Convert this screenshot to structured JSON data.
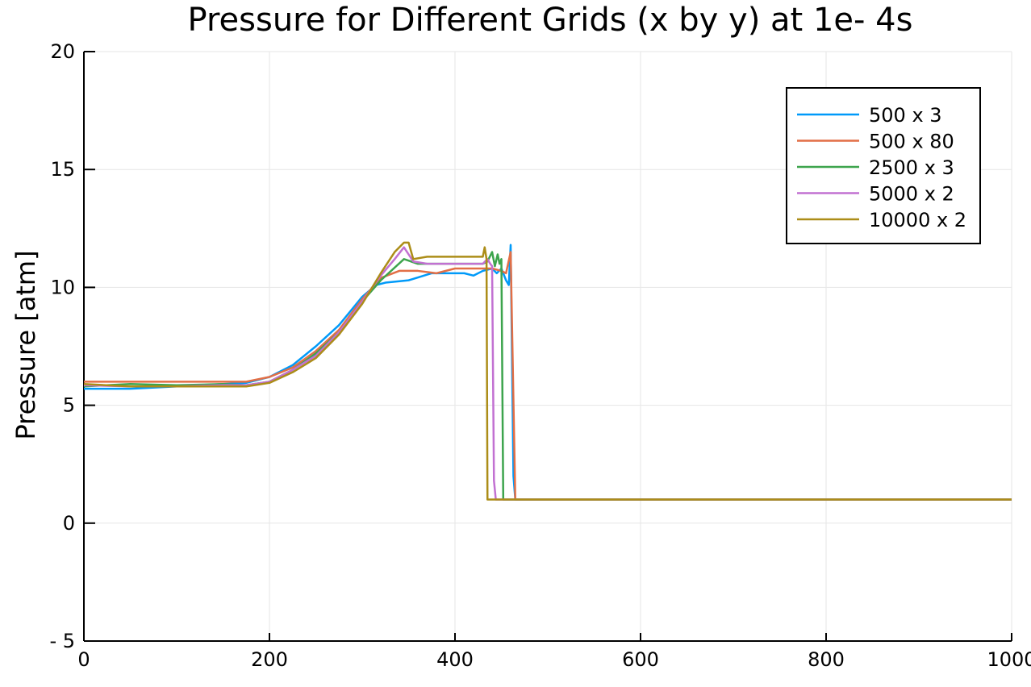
{
  "chart_data": {
    "type": "line",
    "title": "Pressure for Different Grids (x by y) at 1e- 4s",
    "xlabel": "",
    "ylabel": "Pressure [atm]",
    "xlim": [
      0,
      1000
    ],
    "ylim": [
      -5,
      20
    ],
    "x_ticks": [
      0,
      200,
      400,
      600,
      800,
      1000
    ],
    "x_tick_labels": [
      "0",
      "200",
      "400",
      "600",
      "800",
      "1000"
    ],
    "y_ticks": [
      -5,
      0,
      5,
      10,
      15,
      20
    ],
    "y_tick_labels": [
      "- 5",
      "0",
      "5",
      "10",
      "15",
      "20"
    ],
    "grid": true,
    "legend_position": "top-right",
    "series": [
      {
        "name": "500 x 3",
        "color": "#009af9",
        "points": [
          [
            0,
            5.7
          ],
          [
            50,
            5.7
          ],
          [
            100,
            5.8
          ],
          [
            150,
            5.9
          ],
          [
            175,
            5.95
          ],
          [
            200,
            6.2
          ],
          [
            225,
            6.7
          ],
          [
            250,
            7.5
          ],
          [
            275,
            8.4
          ],
          [
            300,
            9.6
          ],
          [
            315,
            10.1
          ],
          [
            325,
            10.2
          ],
          [
            350,
            10.3
          ],
          [
            375,
            10.6
          ],
          [
            400,
            10.6
          ],
          [
            410,
            10.6
          ],
          [
            420,
            10.5
          ],
          [
            430,
            10.7
          ],
          [
            440,
            10.8
          ],
          [
            445,
            10.6
          ],
          [
            450,
            10.8
          ],
          [
            455,
            10.3
          ],
          [
            458,
            10.1
          ],
          [
            460,
            11.8
          ],
          [
            463,
            2.0
          ],
          [
            465,
            1.0
          ],
          [
            1000,
            1.0
          ]
        ]
      },
      {
        "name": "500 x 80",
        "color": "#e26f46",
        "points": [
          [
            0,
            6.0
          ],
          [
            50,
            6.0
          ],
          [
            100,
            6.0
          ],
          [
            150,
            6.0
          ],
          [
            175,
            6.0
          ],
          [
            200,
            6.2
          ],
          [
            225,
            6.6
          ],
          [
            250,
            7.3
          ],
          [
            275,
            8.2
          ],
          [
            300,
            9.5
          ],
          [
            320,
            10.4
          ],
          [
            340,
            10.7
          ],
          [
            360,
            10.7
          ],
          [
            380,
            10.6
          ],
          [
            400,
            10.8
          ],
          [
            420,
            10.8
          ],
          [
            440,
            10.8
          ],
          [
            450,
            10.7
          ],
          [
            455,
            10.6
          ],
          [
            460,
            11.5
          ],
          [
            465,
            1.0
          ],
          [
            1000,
            1.0
          ]
        ]
      },
      {
        "name": "2500 x 3",
        "color": "#3da44d",
        "points": [
          [
            0,
            5.8
          ],
          [
            50,
            5.9
          ],
          [
            100,
            5.85
          ],
          [
            150,
            5.9
          ],
          [
            175,
            5.85
          ],
          [
            200,
            6.0
          ],
          [
            225,
            6.5
          ],
          [
            250,
            7.2
          ],
          [
            275,
            8.1
          ],
          [
            300,
            9.4
          ],
          [
            320,
            10.3
          ],
          [
            345,
            11.2
          ],
          [
            360,
            11.0
          ],
          [
            380,
            11.0
          ],
          [
            400,
            11.0
          ],
          [
            420,
            11.0
          ],
          [
            430,
            11.0
          ],
          [
            435,
            11.1
          ],
          [
            440,
            11.5
          ],
          [
            443,
            10.9
          ],
          [
            446,
            11.4
          ],
          [
            448,
            11.0
          ],
          [
            450,
            11.2
          ],
          [
            452,
            1.0
          ],
          [
            1000,
            1.0
          ]
        ]
      },
      {
        "name": "5000 x 2",
        "color": "#c271d2",
        "points": [
          [
            0,
            5.85
          ],
          [
            50,
            5.8
          ],
          [
            100,
            5.8
          ],
          [
            150,
            5.85
          ],
          [
            175,
            5.85
          ],
          [
            200,
            6.0
          ],
          [
            225,
            6.5
          ],
          [
            250,
            7.1
          ],
          [
            275,
            8.1
          ],
          [
            300,
            9.4
          ],
          [
            320,
            10.5
          ],
          [
            335,
            11.2
          ],
          [
            345,
            11.7
          ],
          [
            355,
            11.1
          ],
          [
            370,
            11.0
          ],
          [
            380,
            11.0
          ],
          [
            400,
            11.0
          ],
          [
            420,
            11.0
          ],
          [
            430,
            11.0
          ],
          [
            435,
            11.2
          ],
          [
            438,
            11.0
          ],
          [
            440,
            10.9
          ],
          [
            442,
            1.8
          ],
          [
            444,
            1.0
          ],
          [
            1000,
            1.0
          ]
        ]
      },
      {
        "name": "10000 x 2",
        "color": "#ac8d18",
        "points": [
          [
            0,
            5.9
          ],
          [
            50,
            5.8
          ],
          [
            100,
            5.8
          ],
          [
            150,
            5.8
          ],
          [
            175,
            5.8
          ],
          [
            200,
            5.95
          ],
          [
            225,
            6.4
          ],
          [
            250,
            7.0
          ],
          [
            275,
            8.0
          ],
          [
            300,
            9.3
          ],
          [
            320,
            10.6
          ],
          [
            335,
            11.5
          ],
          [
            345,
            11.9
          ],
          [
            350,
            11.9
          ],
          [
            355,
            11.2
          ],
          [
            370,
            11.3
          ],
          [
            380,
            11.3
          ],
          [
            400,
            11.3
          ],
          [
            420,
            11.3
          ],
          [
            430,
            11.3
          ],
          [
            432,
            11.7
          ],
          [
            434,
            11.2
          ],
          [
            435,
            1.0
          ],
          [
            1000,
            1.0
          ]
        ]
      }
    ]
  }
}
